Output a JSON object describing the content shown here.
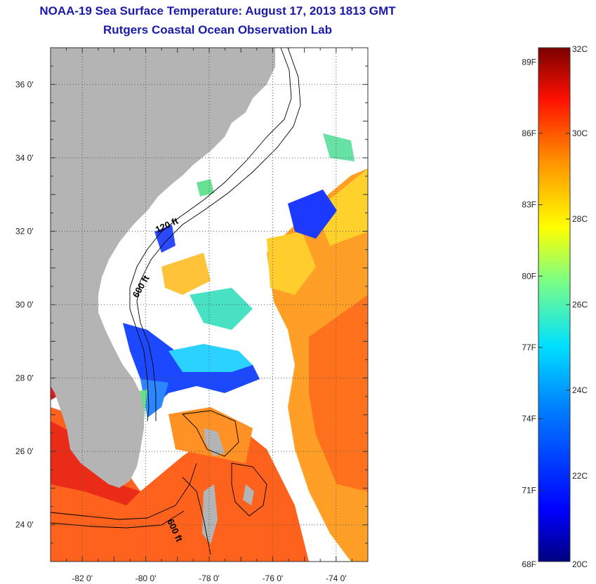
{
  "title": "NOAA-19 Sea Surface Temperature:  August 17, 2013 1813 GMT",
  "subtitle": "Rutgers Coastal Ocean Observation Lab",
  "map": {
    "lon_range": [
      -83,
      -73
    ],
    "lat_range": [
      23,
      37
    ],
    "x_ticks": [
      "-82 0'",
      "-80 0'",
      "-78 0'",
      "-76 0'",
      "-74 0'"
    ],
    "y_ticks": [
      "24 0'",
      "26 0'",
      "28 0'",
      "30 0'",
      "32 0'",
      "34 0'",
      "36 0'"
    ],
    "contour_labels": [
      "120 ft",
      "600 ft",
      "600 ft"
    ],
    "land_color": "#b4b4b4",
    "no_data_color": "#ffffff"
  },
  "colorbar": {
    "fahrenheit_labels": [
      "89F",
      "86F",
      "83F",
      "80F",
      "77F",
      "74F",
      "71F",
      "68F"
    ],
    "celsius_labels": [
      "32C",
      "30C",
      "28C",
      "26C",
      "24C",
      "22C",
      "20C"
    ],
    "range_c": [
      20,
      32
    ],
    "colors": [
      "#000080",
      "#0000ff",
      "#0080ff",
      "#00ffff",
      "#80ff80",
      "#ffff00",
      "#ff8000",
      "#ff0000",
      "#800000"
    ]
  }
}
